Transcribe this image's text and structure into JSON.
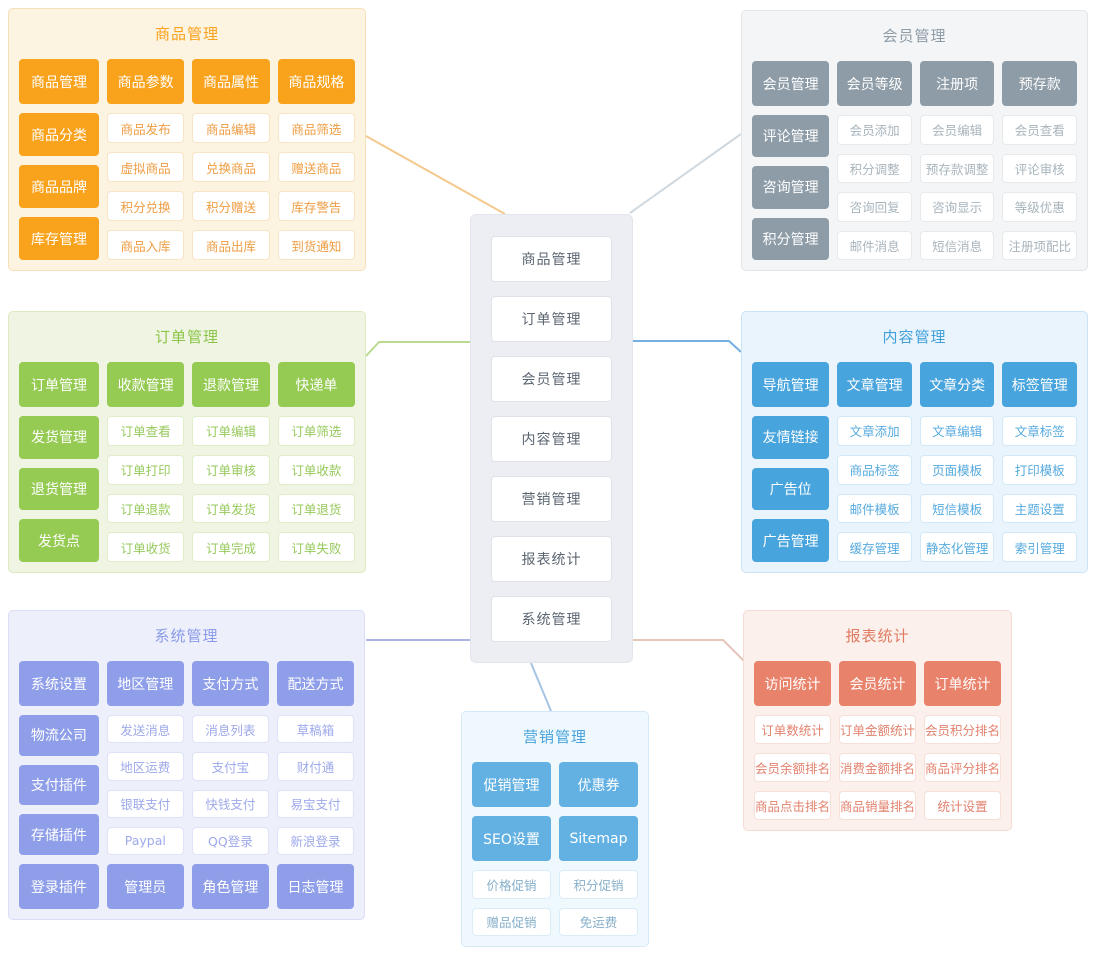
{
  "center_menu": {
    "items": [
      "商品管理",
      "订单管理",
      "会员管理",
      "内容管理",
      "营销管理",
      "报表统计",
      "系统管理"
    ]
  },
  "panels": {
    "product": {
      "title": "商品管理",
      "accent": "#F9A21B",
      "left": [
        "商品管理",
        "商品分类",
        "商品品牌",
        "库存管理"
      ],
      "top_row": [
        "商品参数",
        "商品属性",
        "商品规格"
      ],
      "cells": [
        [
          "商品发布",
          "商品编辑",
          "商品筛选"
        ],
        [
          "虚拟商品",
          "兑换商品",
          "赠送商品"
        ],
        [
          "积分兑换",
          "积分赠送",
          "库存警告"
        ],
        [
          "商品入库",
          "商品出库",
          "到货通知"
        ]
      ]
    },
    "member": {
      "title": "会员管理",
      "accent": "#8D9CA7",
      "left": [
        "会员管理",
        "评论管理",
        "咨询管理",
        "积分管理"
      ],
      "top_row": [
        "会员等级",
        "注册项",
        "预存款"
      ],
      "cells": [
        [
          "会员添加",
          "会员编辑",
          "会员查看"
        ],
        [
          "积分调整",
          "预存款调整",
          "评论审核"
        ],
        [
          "咨询回复",
          "咨询显示",
          "等级优惠"
        ],
        [
          "邮件消息",
          "短信消息",
          "注册项配比"
        ]
      ]
    },
    "order": {
      "title": "订单管理",
      "accent": "#95CA53",
      "left": [
        "订单管理",
        "发货管理",
        "退货管理",
        "发货点"
      ],
      "top_row": [
        "收款管理",
        "退款管理",
        "快递单"
      ],
      "cells": [
        [
          "订单查看",
          "订单编辑",
          "订单筛选"
        ],
        [
          "订单打印",
          "订单审核",
          "订单收款"
        ],
        [
          "订单退款",
          "订单发货",
          "订单退货"
        ],
        [
          "订单收货",
          "订单完成",
          "订单失败"
        ]
      ]
    },
    "content": {
      "title": "内容管理",
      "accent": "#48A4DC",
      "left": [
        "导航管理",
        "友情链接",
        "广告位",
        "广告管理"
      ],
      "top_row": [
        "文章管理",
        "文章分类",
        "标签管理"
      ],
      "cells": [
        [
          "文章添加",
          "文章编辑",
          "文章标签"
        ],
        [
          "商品标签",
          "页面模板",
          "打印模板"
        ],
        [
          "邮件模板",
          "短信模板",
          "主题设置"
        ],
        [
          "缓存管理",
          "静态化管理",
          "索引管理"
        ]
      ]
    },
    "system": {
      "title": "系统管理",
      "accent": "#8F9EE9",
      "left": [
        "系统设置",
        "物流公司",
        "支付插件",
        "存储插件",
        "登录插件"
      ],
      "top_row": [
        "地区管理",
        "支付方式",
        "配送方式"
      ],
      "cells": [
        [
          "发送消息",
          "消息列表",
          "草稿箱"
        ],
        [
          "地区运费",
          "支付宝",
          "财付通"
        ],
        [
          "银联支付",
          "快钱支付",
          "易宝支付"
        ],
        [
          "Paypal",
          "QQ登录",
          "新浪登录"
        ]
      ],
      "bottom_row": [
        "管理员",
        "角色管理",
        "日志管理"
      ]
    },
    "marketing": {
      "title": "营销管理",
      "accent": "#63B1E3",
      "solid": [
        "促销管理",
        "优惠券",
        "SEO设置",
        "Sitemap"
      ],
      "cells": [
        "价格促销",
        "积分促销",
        "赠品促销",
        "免运费"
      ]
    },
    "report": {
      "title": "报表统计",
      "accent": "#E8826B",
      "top_row": [
        "访问统计",
        "会员统计",
        "订单统计"
      ],
      "cells": [
        [
          "订单数统计",
          "订单金额统计",
          "会员积分排名"
        ],
        [
          "会员余额排名",
          "消费金额排名",
          "商品评分排名"
        ],
        [
          "商品点击排名",
          "商品销量排名",
          "统计设置"
        ]
      ]
    }
  },
  "connector_colors": {
    "product": "#F4C98E",
    "member": "#CFD8DE",
    "order": "#B9DA90",
    "content": "#74AFE0",
    "system": "#A9B3E2",
    "report": "#E7C6BA",
    "marketing": "#A5C4E4"
  }
}
